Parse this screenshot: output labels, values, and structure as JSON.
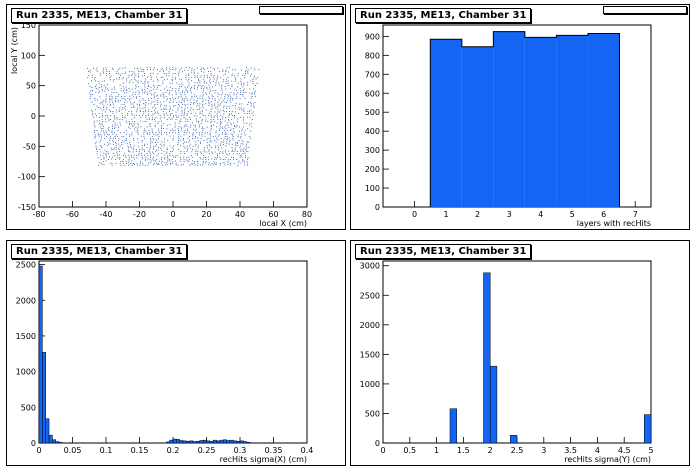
{
  "panels": [
    {
      "title": "Run 2335, ME13, Chamber 31"
    },
    {
      "title": "Run 2335, ME13, Chamber 31"
    },
    {
      "title": "Run 2335, ME13, Chamber 31"
    },
    {
      "title": "Run 2335, ME13, Chamber 31"
    }
  ],
  "chart_data": [
    {
      "type": "scatter",
      "title": "Run 2335, ME13, Chamber 31",
      "xlabel": "local X (cm)",
      "ylabel": "local Y (cm)",
      "xlim": [
        -80,
        80
      ],
      "ylim": [
        -150,
        150
      ],
      "xticks": [
        -80,
        -60,
        -40,
        -20,
        0,
        20,
        40,
        60,
        80
      ],
      "yticks": [
        -150,
        -100,
        -50,
        0,
        50,
        100,
        150
      ],
      "color": "#1f4e9e",
      "region": {
        "y_top": 80,
        "y_bottom": -80,
        "half_width_top": 52,
        "half_width_bottom": 45
      }
    },
    {
      "type": "bar",
      "title": "Run 2335, ME13, Chamber 31",
      "xlabel": "layers with recHits",
      "ylabel": "",
      "xlim": [
        -1,
        7.5
      ],
      "ylim": [
        0,
        960
      ],
      "xticks": [
        0,
        1,
        2,
        3,
        4,
        5,
        6,
        7
      ],
      "yticks": [
        0,
        100,
        200,
        300,
        400,
        500,
        600,
        700,
        800,
        900
      ],
      "bin_edges": [
        0.5,
        1.5,
        2.5,
        3.5,
        4.5,
        5.5,
        6.5
      ],
      "values": [
        885,
        845,
        925,
        895,
        905,
        915
      ],
      "color": "#1565f5"
    },
    {
      "type": "bar",
      "title": "Run 2335, ME13, Chamber 31",
      "xlabel": "recHits sigma(X) (cm)",
      "ylabel": "",
      "xlim": [
        0,
        0.4
      ],
      "ylim": [
        0,
        2550
      ],
      "xticks": [
        0,
        0.05,
        0.1,
        0.15,
        0.2,
        0.25,
        0.3,
        0.35,
        0.4
      ],
      "xtick_labels": [
        "0",
        "0.05",
        "0.1",
        "0.15",
        "0.2",
        "0.25",
        "0.3",
        "0.35",
        "0.4"
      ],
      "yticks": [
        0,
        500,
        1000,
        1500,
        2000,
        2500
      ],
      "bin_width": 0.005,
      "bins": [
        {
          "x": 0.0,
          "v": 2480
        },
        {
          "x": 0.005,
          "v": 1270
        },
        {
          "x": 0.01,
          "v": 340
        },
        {
          "x": 0.015,
          "v": 110
        },
        {
          "x": 0.02,
          "v": 45
        },
        {
          "x": 0.025,
          "v": 20
        },
        {
          "x": 0.03,
          "v": 8
        },
        {
          "x": 0.19,
          "v": 15
        },
        {
          "x": 0.195,
          "v": 40
        },
        {
          "x": 0.2,
          "v": 55
        },
        {
          "x": 0.205,
          "v": 50
        },
        {
          "x": 0.21,
          "v": 35
        },
        {
          "x": 0.215,
          "v": 30
        },
        {
          "x": 0.22,
          "v": 25
        },
        {
          "x": 0.225,
          "v": 30
        },
        {
          "x": 0.23,
          "v": 20
        },
        {
          "x": 0.235,
          "v": 25
        },
        {
          "x": 0.24,
          "v": 35
        },
        {
          "x": 0.245,
          "v": 40
        },
        {
          "x": 0.25,
          "v": 30
        },
        {
          "x": 0.255,
          "v": 25
        },
        {
          "x": 0.26,
          "v": 40
        },
        {
          "x": 0.265,
          "v": 30
        },
        {
          "x": 0.27,
          "v": 40
        },
        {
          "x": 0.275,
          "v": 45
        },
        {
          "x": 0.28,
          "v": 35
        },
        {
          "x": 0.285,
          "v": 40
        },
        {
          "x": 0.29,
          "v": 30
        },
        {
          "x": 0.295,
          "v": 25
        },
        {
          "x": 0.3,
          "v": 30
        },
        {
          "x": 0.305,
          "v": 20
        },
        {
          "x": 0.31,
          "v": 10
        }
      ],
      "color": "#1565f5"
    },
    {
      "type": "bar",
      "title": "Run 2335, ME13, Chamber 31",
      "xlabel": "recHits sigma(Y) (cm)",
      "ylabel": "",
      "xlim": [
        0,
        5
      ],
      "ylim": [
        0,
        3080
      ],
      "xticks": [
        0,
        0.5,
        1,
        1.5,
        2,
        2.5,
        3,
        3.5,
        4,
        4.5,
        5
      ],
      "xtick_labels": [
        "0",
        "0.5",
        "1",
        "1.5",
        "2",
        "2.5",
        "3",
        "3.5",
        "4",
        "4.5",
        "5"
      ],
      "yticks": [
        0,
        500,
        1000,
        1500,
        2000,
        2500,
        3000
      ],
      "bin_width": 0.125,
      "bins": [
        {
          "x": 1.25,
          "v": 580
        },
        {
          "x": 1.875,
          "v": 2880
        },
        {
          "x": 2.0,
          "v": 1300
        },
        {
          "x": 2.375,
          "v": 130
        },
        {
          "x": 4.875,
          "v": 480
        }
      ],
      "color": "#1565f5"
    }
  ]
}
